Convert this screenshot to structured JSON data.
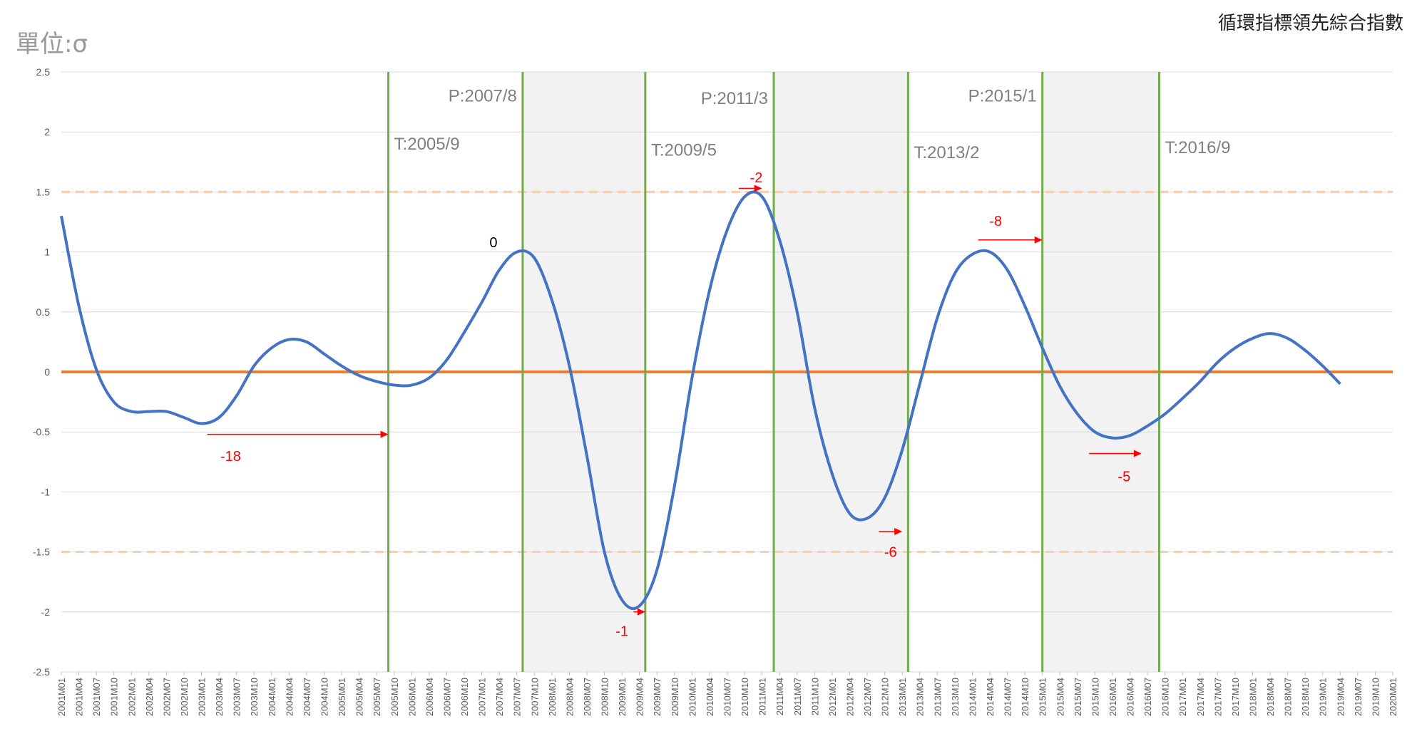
{
  "unit_label": "單位:σ",
  "title": "循環指標領先綜合指數",
  "chart_data": {
    "type": "line",
    "ylim": [
      -2.5,
      2.5
    ],
    "yticks": [
      "2.5",
      "2",
      "1.5",
      "1",
      "0.5",
      "0",
      "-0.5",
      "-1",
      "-1.5",
      "-2",
      "-2.5"
    ],
    "xlim": [
      "2001M01",
      "2020M01"
    ],
    "x_tick_labels": [
      "2001M01",
      "2001M04",
      "2001M07",
      "2001M10",
      "2002M01",
      "2002M04",
      "2002M07",
      "2002M10",
      "2003M01",
      "2003M04",
      "2003M07",
      "2003M10",
      "2004M01",
      "2004M04",
      "2004M07",
      "2004M10",
      "2005M01",
      "2005M04",
      "2005M07",
      "2005M10",
      "2006M01",
      "2006M04",
      "2006M07",
      "2006M10",
      "2007M01",
      "2007M04",
      "2007M07",
      "2007M10",
      "2008M01",
      "2008M04",
      "2008M07",
      "2008M10",
      "2009M01",
      "2009M04",
      "2009M07",
      "2009M10",
      "2010M01",
      "2010M04",
      "2010M07",
      "2010M10",
      "2011M01",
      "2011M04",
      "2011M07",
      "2011M10",
      "2012M01",
      "2012M04",
      "2012M07",
      "2012M10",
      "2013M01",
      "2013M04",
      "2013M07",
      "2013M10",
      "2014M01",
      "2014M04",
      "2014M07",
      "2014M10",
      "2015M01",
      "2015M04",
      "2015M07",
      "2015M10",
      "2016M01",
      "2016M04",
      "2016M07",
      "2016M10",
      "2017M01",
      "2017M04",
      "2017M07",
      "2017M10",
      "2018M01",
      "2018M04",
      "2018M07",
      "2018M10",
      "2019M01",
      "2019M04",
      "2019M07",
      "2019M10",
      "2020M01"
    ],
    "grid": true,
    "bands": [
      {
        "from": "2007M08",
        "to": "2009M05"
      },
      {
        "from": "2011M03",
        "to": "2013M02"
      },
      {
        "from": "2015M01",
        "to": "2016M09"
      }
    ],
    "vertical_lines": [
      {
        "x": "2005M09",
        "label": "T:2005/9",
        "label_y": 1.9
      },
      {
        "x": "2007M08",
        "label": "P:2007/8",
        "label_y": 2.3
      },
      {
        "x": "2009M05",
        "label": "T:2009/5",
        "label_y": 1.85
      },
      {
        "x": "2011M03",
        "label": "P:2011/3",
        "label_y": 2.28
      },
      {
        "x": "2013M02",
        "label": "T:2013/2",
        "label_y": 1.83
      },
      {
        "x": "2015M01",
        "label": "P:2015/1",
        "label_y": 2.3
      },
      {
        "x": "2016M09",
        "label": "T:2016/9",
        "label_y": 1.87
      }
    ],
    "reference_lines": [
      {
        "y": 0,
        "color": "#ED7D31",
        "style": "solid"
      },
      {
        "y": 1.5,
        "color": "#F8CBAD",
        "style": "dashed"
      },
      {
        "y": -1.5,
        "color": "#F8CBAD",
        "style": "dashed"
      }
    ],
    "series": [
      {
        "color": "#4472C4",
        "points": [
          [
            "2001M01",
            1.3
          ],
          [
            "2001M04",
            0.55
          ],
          [
            "2001M07",
            0.02
          ],
          [
            "2001M10",
            -0.25
          ],
          [
            "2002M01",
            -0.33
          ],
          [
            "2002M04",
            -0.33
          ],
          [
            "2002M07",
            -0.33
          ],
          [
            "2002M10",
            -0.38
          ],
          [
            "2003M01",
            -0.43
          ],
          [
            "2003M04",
            -0.38
          ],
          [
            "2003M07",
            -0.2
          ],
          [
            "2003M10",
            0.05
          ],
          [
            "2004M01",
            0.2
          ],
          [
            "2004M04",
            0.27
          ],
          [
            "2004M07",
            0.25
          ],
          [
            "2004M10",
            0.15
          ],
          [
            "2005M01",
            0.05
          ],
          [
            "2005M04",
            -0.03
          ],
          [
            "2005M07",
            -0.08
          ],
          [
            "2005M10",
            -0.11
          ],
          [
            "2006M01",
            -0.11
          ],
          [
            "2006M04",
            -0.05
          ],
          [
            "2006M07",
            0.1
          ],
          [
            "2006M10",
            0.33
          ],
          [
            "2007M01",
            0.58
          ],
          [
            "2007M04",
            0.85
          ],
          [
            "2007M07",
            1.0
          ],
          [
            "2007M10",
            0.95
          ],
          [
            "2008M01",
            0.6
          ],
          [
            "2008M04",
            0.05
          ],
          [
            "2008M07",
            -0.7
          ],
          [
            "2008M10",
            -1.5
          ],
          [
            "2009M01",
            -1.9
          ],
          [
            "2009M04",
            -1.95
          ],
          [
            "2009M07",
            -1.65
          ],
          [
            "2009M10",
            -0.95
          ],
          [
            "2010M01",
            -0.05
          ],
          [
            "2010M04",
            0.68
          ],
          [
            "2010M07",
            1.18
          ],
          [
            "2010M10",
            1.46
          ],
          [
            "2011M01",
            1.46
          ],
          [
            "2011M04",
            1.1
          ],
          [
            "2011M07",
            0.5
          ],
          [
            "2011M10",
            -0.3
          ],
          [
            "2012M01",
            -0.85
          ],
          [
            "2012M04",
            -1.18
          ],
          [
            "2012M07",
            -1.22
          ],
          [
            "2012M10",
            -1.05
          ],
          [
            "2013M01",
            -0.65
          ],
          [
            "2013M04",
            -0.1
          ],
          [
            "2013M07",
            0.45
          ],
          [
            "2013M10",
            0.82
          ],
          [
            "2014M01",
            0.98
          ],
          [
            "2014M04",
            1.0
          ],
          [
            "2014M07",
            0.85
          ],
          [
            "2014M10",
            0.55
          ],
          [
            "2015M01",
            0.2
          ],
          [
            "2015M04",
            -0.12
          ],
          [
            "2015M07",
            -0.35
          ],
          [
            "2015M10",
            -0.5
          ],
          [
            "2016M01",
            -0.55
          ],
          [
            "2016M04",
            -0.53
          ],
          [
            "2016M07",
            -0.45
          ],
          [
            "2016M10",
            -0.35
          ],
          [
            "2017M01",
            -0.22
          ],
          [
            "2017M04",
            -0.08
          ],
          [
            "2017M07",
            0.08
          ],
          [
            "2017M10",
            0.2
          ],
          [
            "2018M01",
            0.28
          ],
          [
            "2018M04",
            0.32
          ],
          [
            "2018M07",
            0.28
          ],
          [
            "2018M10",
            0.18
          ],
          [
            "2019M01",
            0.05
          ],
          [
            "2019M04",
            -0.1
          ]
        ]
      }
    ],
    "annotations": [
      {
        "text": "-18",
        "x": "2003M06",
        "y": -0.7,
        "color": "#FF0000"
      },
      {
        "text": "0",
        "x": "2007M03",
        "y": 1.08,
        "color": "#000000"
      },
      {
        "text": "-1",
        "x": "2009M01",
        "y": -2.16,
        "color": "#FF0000"
      },
      {
        "text": "-2",
        "x": "2010M12",
        "y": 1.62,
        "color": "#FF0000"
      },
      {
        "text": "-6",
        "x": "2012M11",
        "y": -1.5,
        "color": "#FF0000"
      },
      {
        "text": "-8",
        "x": "2014M05",
        "y": 1.26,
        "color": "#FF0000"
      },
      {
        "text": "-5",
        "x": "2016M03",
        "y": -0.87,
        "color": "#FF0000"
      }
    ],
    "arrows": [
      {
        "from": "2003M02",
        "to": "2005M09",
        "y": -0.52
      },
      {
        "from": "2009M03",
        "to": "2009M05",
        "y": -2.0
      },
      {
        "from": "2010M09",
        "to": "2011M01",
        "y": 1.53
      },
      {
        "from": "2012M09",
        "to": "2013M01",
        "y": -1.33
      },
      {
        "from": "2014M02",
        "to": "2015M01",
        "y": 1.1
      },
      {
        "from": "2015M09",
        "to": "2016M06",
        "y": -0.68
      }
    ]
  }
}
